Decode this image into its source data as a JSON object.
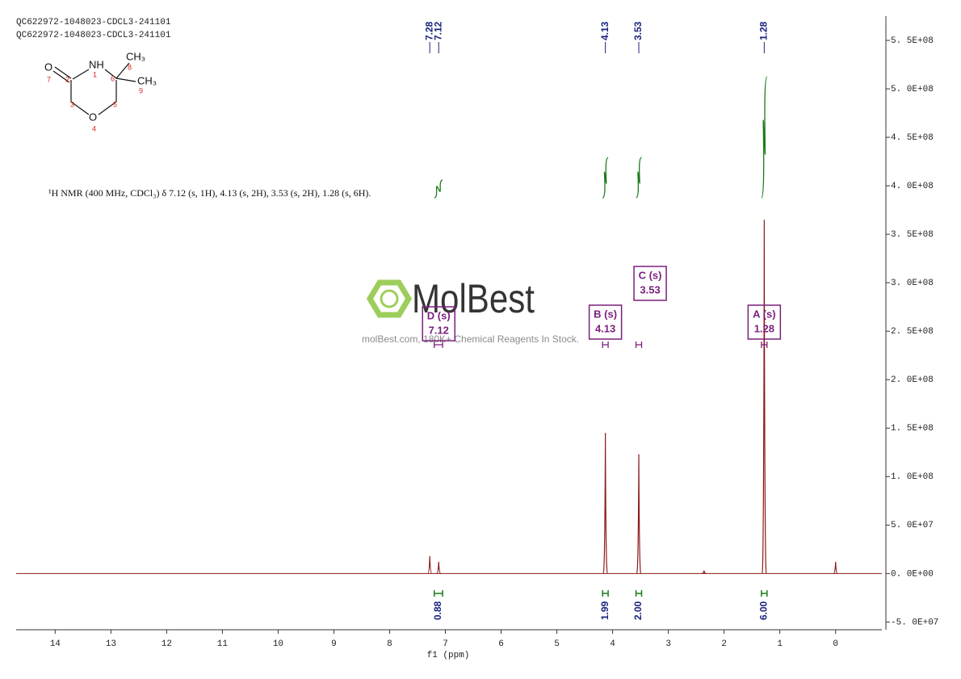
{
  "chart_data": {
    "type": "nmr",
    "header": [
      "QC622972-1048023-CDCL3-241101",
      "QC622972-1048023-CDCL3-241101"
    ],
    "description": "¹H NMR (400 MHz, CDCl₃) δ 7.12 (s, 1H), 4.13 (s, 2H), 3.53 (s, 2H), 1.28 (s, 6H).",
    "structure": {
      "atoms": [
        "O",
        "NH",
        "CH₃",
        "CH₃",
        "O"
      ],
      "numbers": [
        "7",
        "1",
        "8",
        "2",
        "6",
        "9",
        "3",
        "5",
        "4"
      ]
    },
    "watermark": {
      "brand": "MolBest",
      "tagline": "molBest.com, 180K+ Chemical Reagents In Stock."
    },
    "xlabel": "f1 (ppm)",
    "xlim": [
      14.7,
      -0.83
    ],
    "xticks": [
      14,
      13,
      12,
      11,
      10,
      9,
      8,
      7,
      6,
      5,
      4,
      3,
      2,
      1,
      0
    ],
    "ylim": [
      -58000000,
      575000000
    ],
    "yticks": [
      {
        "value": -50000000,
        "label": "-5. 0E+07"
      },
      {
        "value": 0,
        "label": "0. 0E+00"
      },
      {
        "value": 50000000,
        "label": "5. 0E+07"
      },
      {
        "value": 100000000,
        "label": "1. 0E+08"
      },
      {
        "value": 150000000,
        "label": "1. 5E+08"
      },
      {
        "value": 200000000,
        "label": "2. 0E+08"
      },
      {
        "value": 250000000,
        "label": "2. 5E+08"
      },
      {
        "value": 300000000,
        "label": "3. 0E+08"
      },
      {
        "value": 350000000,
        "label": "3. 5E+08"
      },
      {
        "value": 400000000,
        "label": "4. 0E+08"
      },
      {
        "value": 450000000,
        "label": "4. 5E+08"
      },
      {
        "value": 500000000,
        "label": "5. 0E+08"
      },
      {
        "value": 550000000,
        "label": "5. 5E+08"
      }
    ],
    "series": [
      {
        "name": "spectrum",
        "color": "#8b1a1a",
        "x": [
          7.28,
          7.12,
          4.13,
          3.53,
          2.36,
          1.28,
          0.0
        ],
        "values": [
          18000000,
          12000000,
          145000000,
          123000000,
          3000000,
          365000000,
          12000000
        ]
      }
    ],
    "peak_labels": [
      7.28,
      7.12,
      4.13,
      3.53,
      1.28
    ],
    "integrals": {
      "color": "#1a7a1a",
      "ranges": [
        [
          7.2,
          7.05
        ],
        [
          4.18,
          4.08
        ],
        [
          3.58,
          3.48
        ],
        [
          1.33,
          1.23
        ]
      ],
      "values": [
        0.88,
        1.99,
        2.0,
        6.0
      ],
      "value_labels": [
        "0.88",
        "1.99",
        "2.00",
        "6.00"
      ]
    },
    "multiplets": [
      {
        "name": "D (s)",
        "shift": 7.12
      },
      {
        "name": "B (s)",
        "shift": 4.13
      },
      {
        "name": "C (s)",
        "shift": 3.53
      },
      {
        "name": "A (s)",
        "shift": 1.28
      }
    ]
  }
}
